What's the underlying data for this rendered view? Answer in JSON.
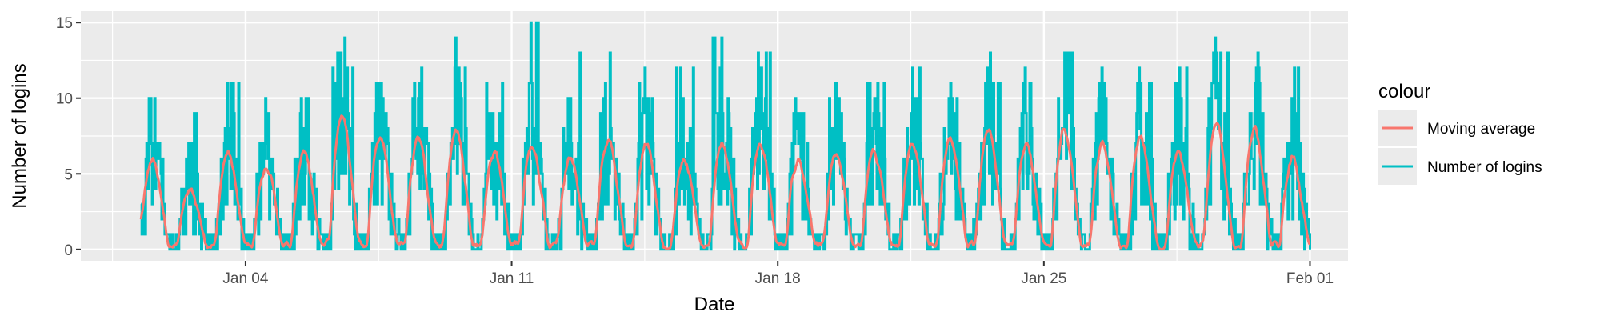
{
  "chart_data": {
    "type": "line",
    "xlabel": "Date",
    "ylabel": "Number of logins",
    "x_type": "date",
    "x_range": [
      "2020-01-01T06:00",
      "2020-02-01T00:00"
    ],
    "xlim": [
      "2019-12-30T16:00",
      "2020-02-02T00:00"
    ],
    "ylim": [
      -0.75,
      15.75
    ],
    "x_ticks": [
      {
        "date": "2020-01-04",
        "label": "Jan 04"
      },
      {
        "date": "2020-01-11",
        "label": "Jan 11"
      },
      {
        "date": "2020-01-18",
        "label": "Jan 18"
      },
      {
        "date": "2020-01-25",
        "label": "Jan 25"
      },
      {
        "date": "2020-02-01",
        "label": "Feb 01"
      }
    ],
    "y_ticks": [
      0,
      5,
      10,
      15
    ],
    "grid": true,
    "legend": {
      "title": "colour",
      "position": "right",
      "entries": [
        {
          "label": "Moving average",
          "color": "#F8766D"
        },
        {
          "label": "Number of logins",
          "color": "#00BFC4"
        }
      ]
    },
    "series": [
      {
        "name": "Number of logins",
        "color": "#00BFC4",
        "daily_peak_counts": [
          7,
          9,
          11,
          14,
          10,
          12,
          11,
          13,
          12,
          11,
          15,
          13,
          10,
          11,
          12,
          14,
          13,
          12,
          10,
          11,
          12,
          10,
          11,
          12,
          13,
          12,
          11,
          12,
          13,
          12,
          12
        ],
        "min": 0,
        "max": 15
      },
      {
        "name": "Moving average",
        "color": "#F8766D",
        "daily_peak_values": [
          6,
          4,
          6.5,
          5.5,
          6.5,
          9,
          7.5,
          7.5,
          8,
          6.5,
          7,
          6,
          7.5,
          7,
          6,
          7,
          7,
          6,
          6.5,
          6.5,
          7,
          7.5,
          8,
          7,
          8,
          7,
          7.5,
          6.5,
          8.5,
          8,
          6
        ],
        "min": 0,
        "max": 9.3
      }
    ]
  }
}
